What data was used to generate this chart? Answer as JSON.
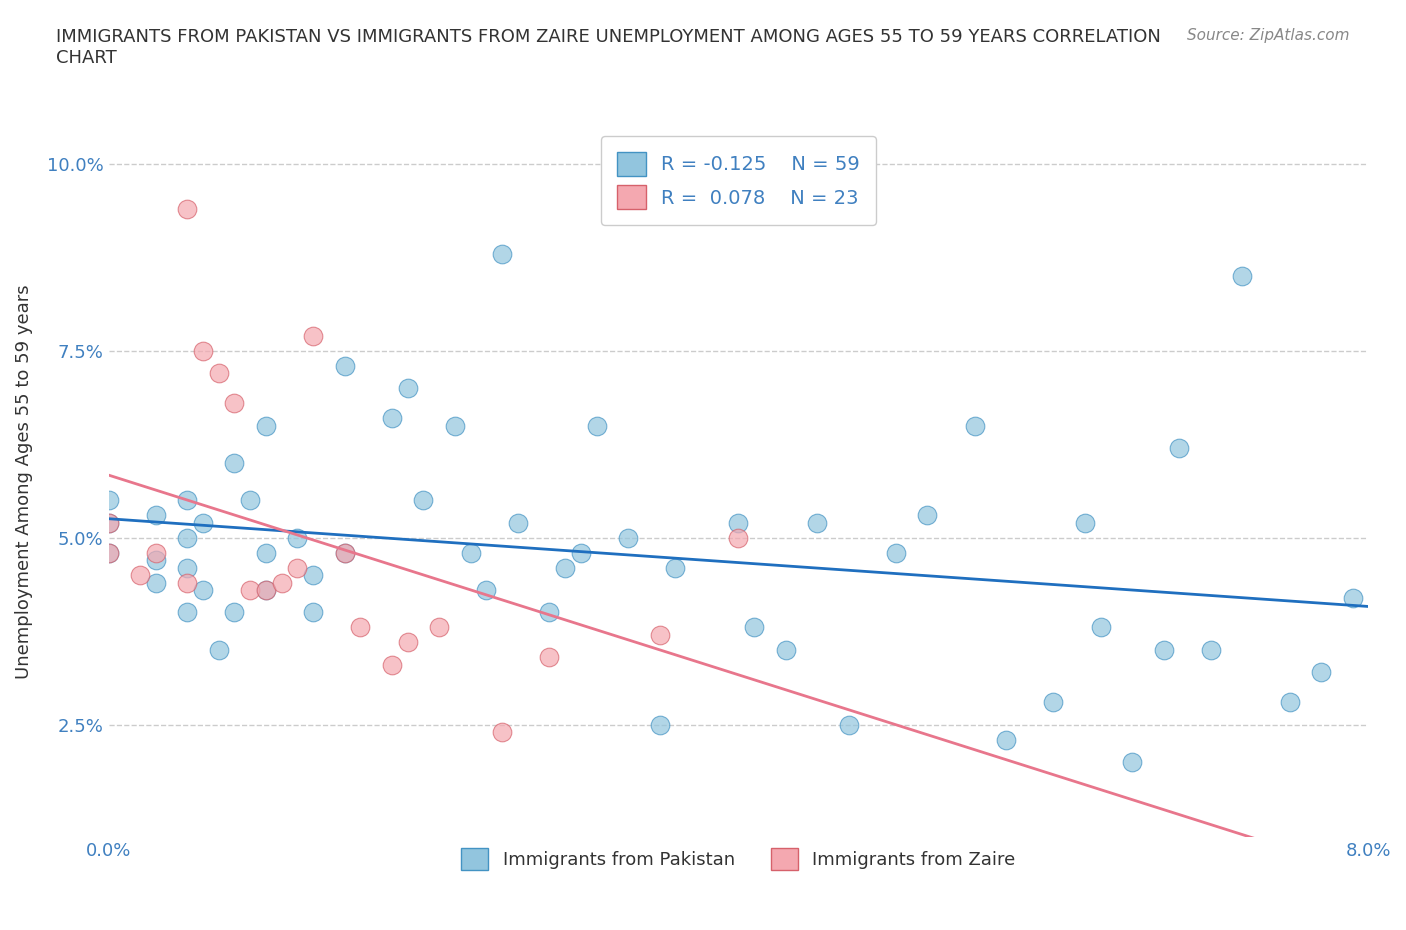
{
  "title": "IMMIGRANTS FROM PAKISTAN VS IMMIGRANTS FROM ZAIRE UNEMPLOYMENT AMONG AGES 55 TO 59 YEARS CORRELATION\nCHART",
  "source_text": "Source: ZipAtlas.com",
  "xlabel": "",
  "ylabel": "Unemployment Among Ages 55 to 59 years",
  "xlim": [
    0.0,
    0.08
  ],
  "ylim": [
    0.01,
    0.105
  ],
  "xticks": [
    0.0,
    0.01,
    0.02,
    0.03,
    0.04,
    0.05,
    0.06,
    0.07,
    0.08
  ],
  "xticklabels": [
    "0.0%",
    "",
    "",
    "",
    "",
    "",
    "",
    "",
    "8.0%"
  ],
  "yticks": [
    0.025,
    0.05,
    0.075,
    0.1
  ],
  "yticklabels": [
    "2.5%",
    "5.0%",
    "7.5%",
    "10.0%"
  ],
  "pakistan_color": "#92C5DE",
  "pakistan_edge_color": "#4393C3",
  "zaire_color": "#F4A8B0",
  "zaire_edge_color": "#D6616B",
  "pakistan_trend_color": "#1F6FBF",
  "zaire_trend_color": "#E8768C",
  "legend_R1": "R = -0.125",
  "legend_N1": "N = 59",
  "legend_R2": "R =  0.078",
  "legend_N2": "N = 23",
  "legend_label1": "Immigrants from Pakistan",
  "legend_label2": "Immigrants from Zaire",
  "pakistan_x": [
    0.0,
    0.0,
    0.0,
    0.003,
    0.003,
    0.003,
    0.005,
    0.005,
    0.005,
    0.005,
    0.006,
    0.006,
    0.007,
    0.008,
    0.008,
    0.009,
    0.01,
    0.01,
    0.01,
    0.012,
    0.013,
    0.013,
    0.015,
    0.015,
    0.018,
    0.019,
    0.02,
    0.022,
    0.023,
    0.024,
    0.025,
    0.026,
    0.028,
    0.029,
    0.03,
    0.031,
    0.033,
    0.035,
    0.036,
    0.04,
    0.041,
    0.043,
    0.045,
    0.047,
    0.05,
    0.052,
    0.055,
    0.057,
    0.06,
    0.062,
    0.063,
    0.065,
    0.067,
    0.068,
    0.07,
    0.072,
    0.075,
    0.077,
    0.079
  ],
  "pakistan_y": [
    0.048,
    0.052,
    0.055,
    0.044,
    0.047,
    0.053,
    0.04,
    0.046,
    0.05,
    0.055,
    0.043,
    0.052,
    0.035,
    0.04,
    0.06,
    0.055,
    0.043,
    0.048,
    0.065,
    0.05,
    0.04,
    0.045,
    0.048,
    0.073,
    0.066,
    0.07,
    0.055,
    0.065,
    0.048,
    0.043,
    0.088,
    0.052,
    0.04,
    0.046,
    0.048,
    0.065,
    0.05,
    0.025,
    0.046,
    0.052,
    0.038,
    0.035,
    0.052,
    0.025,
    0.048,
    0.053,
    0.065,
    0.023,
    0.028,
    0.052,
    0.038,
    0.02,
    0.035,
    0.062,
    0.035,
    0.085,
    0.028,
    0.032,
    0.042
  ],
  "zaire_x": [
    0.0,
    0.0,
    0.002,
    0.003,
    0.005,
    0.005,
    0.006,
    0.007,
    0.008,
    0.009,
    0.01,
    0.011,
    0.012,
    0.013,
    0.015,
    0.016,
    0.018,
    0.019,
    0.021,
    0.025,
    0.028,
    0.035,
    0.04
  ],
  "zaire_y": [
    0.048,
    0.052,
    0.045,
    0.048,
    0.044,
    0.094,
    0.075,
    0.072,
    0.068,
    0.043,
    0.043,
    0.044,
    0.046,
    0.077,
    0.048,
    0.038,
    0.033,
    0.036,
    0.038,
    0.024,
    0.034,
    0.037,
    0.05
  ],
  "background_color": "#FFFFFF",
  "grid_color": "#CCCCCC",
  "marker_size": 180,
  "marker_alpha": 0.7
}
